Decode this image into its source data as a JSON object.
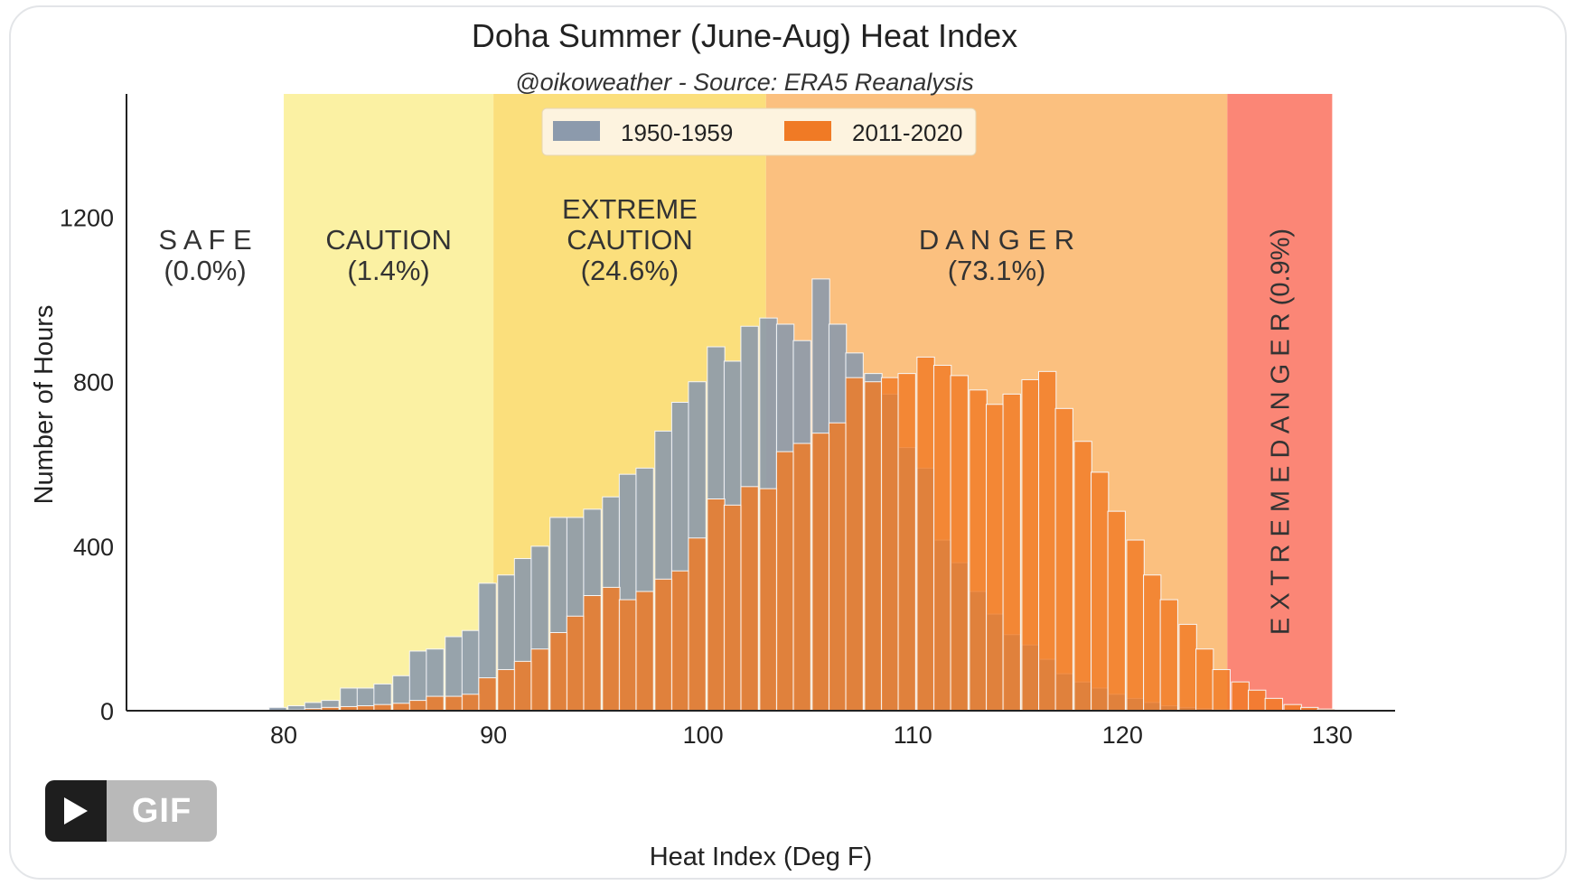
{
  "chart_data": {
    "type": "bar",
    "title": "Doha Summer (June-Aug) Heat Index",
    "subtitle": "@oikoweather - Source: ERA5 Reanalysis",
    "xlabel": "Heat Index (Deg F)",
    "ylabel": "Number of Hours",
    "xlim": [
      72.5,
      133
    ],
    "ylim": [
      0,
      1500
    ],
    "xticks": [
      "80",
      "90",
      "100",
      "110",
      "120",
      "130"
    ],
    "yticks": [
      "0",
      "400",
      "800",
      "1200"
    ],
    "grid": false,
    "legend_position": "top-center",
    "bin_width": 0.833,
    "bin_starts": [
      79.3,
      80.2,
      81.0,
      81.8,
      82.7,
      83.5,
      84.3,
      85.2,
      86.0,
      86.8,
      87.7,
      88.5,
      89.3,
      90.2,
      91.0,
      91.8,
      92.7,
      93.5,
      94.3,
      95.2,
      96.0,
      96.8,
      97.7,
      98.5,
      99.3,
      100.2,
      101.0,
      101.8,
      102.7,
      103.5,
      104.3,
      105.2,
      106.0,
      106.8,
      107.7,
      108.5,
      109.3,
      110.2,
      111.0,
      111.8,
      112.7,
      113.5,
      114.3,
      115.2,
      116.0,
      116.8,
      117.7,
      118.5,
      119.3,
      120.2,
      121.0,
      121.8,
      122.7,
      123.5,
      124.3,
      125.2,
      126.0,
      126.8,
      127.7,
      128.5,
      129.3
    ],
    "series": [
      {
        "name": "1950-1959",
        "color": "#8c9aac",
        "values": [
          8,
          12,
          20,
          25,
          55,
          55,
          65,
          85,
          145,
          150,
          180,
          195,
          310,
          330,
          370,
          400,
          470,
          470,
          490,
          520,
          575,
          590,
          680,
          750,
          800,
          885,
          850,
          935,
          955,
          940,
          900,
          1050,
          940,
          870,
          820,
          770,
          640,
          590,
          415,
          360,
          290,
          235,
          185,
          160,
          125,
          90,
          70,
          55,
          40,
          30,
          20,
          12,
          8,
          5,
          3,
          2,
          1,
          1,
          0,
          0,
          0
        ]
      },
      {
        "name": "2011-2020",
        "color": "#f07a25",
        "values": [
          0,
          2,
          5,
          8,
          10,
          12,
          15,
          18,
          25,
          35,
          35,
          40,
          80,
          100,
          120,
          150,
          190,
          230,
          280,
          300,
          270,
          290,
          320,
          340,
          420,
          515,
          500,
          545,
          540,
          630,
          650,
          675,
          700,
          810,
          800,
          810,
          820,
          860,
          840,
          815,
          780,
          745,
          770,
          805,
          825,
          735,
          655,
          580,
          485,
          415,
          330,
          270,
          210,
          150,
          100,
          70,
          50,
          30,
          15,
          8,
          4
        ]
      }
    ],
    "zones": [
      {
        "label": "S A F E",
        "pct": "(0.0%)",
        "from": 72.5,
        "to": 80,
        "color": "#ffffff"
      },
      {
        "label": "CAUTION",
        "pct": "(1.4%)",
        "from": 80,
        "to": 90,
        "color": "#fbf1a3"
      },
      {
        "label": "EXTREME\nCAUTION",
        "pct": "(24.6%)",
        "from": 90,
        "to": 103,
        "color": "#fbdf7c"
      },
      {
        "label": "D A N G E R",
        "pct": "(73.1%)",
        "from": 103,
        "to": 125,
        "color": "#fbc07f"
      },
      {
        "label": "E X T R E M E    D A N G E R",
        "pct": "(0.9%)",
        "from": 125,
        "to": 130,
        "color": "#fb8676"
      }
    ]
  },
  "media": {
    "gif_label": "GIF"
  }
}
